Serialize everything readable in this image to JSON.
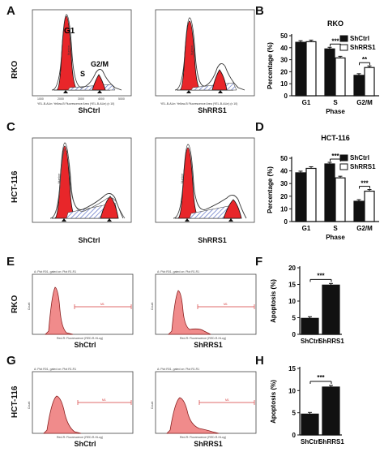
{
  "panels": {
    "A": {
      "letter": "A",
      "row_label": "RKO",
      "peak_labels": {
        "g1": "G1",
        "s": "S",
        "g2m": "G2/M"
      },
      "left_caption": "ShCtrl",
      "right_caption": "ShRRS1",
      "xaxis_text": "YEL-B-ALin: Yellow-B Fluorescence Area (YEL-B-ALin) (x 10)",
      "yaxis_text": "Number",
      "ticks": [
        "1000",
        "2000",
        "3000",
        "4000",
        "5000"
      ]
    },
    "C": {
      "letter": "C",
      "row_label": "HCT-116",
      "left_caption": "ShCtrl",
      "right_caption": "ShRRS1",
      "yaxis_text": "Number"
    },
    "E": {
      "letter": "E",
      "row_label": "RKO",
      "left_caption": "ShCtrl",
      "right_caption": "ShRRS1",
      "hist_title": "A: Plot R01, gated on: Plot R1.R1",
      "xaxis_text": "Red-R: Fluorescence (RED-R-HLog)",
      "yaxis_text": "Count",
      "gate_label": "M1"
    },
    "G": {
      "letter": "G",
      "row_label": "HCT-116",
      "left_caption": "ShCtrl",
      "right_caption": "ShRRS1",
      "hist_title": "A: Plot R01, gated on: Plot R1.R1",
      "xaxis_text": "Red-R: Fluorescence (RED-R-HLog)",
      "yaxis_text": "Count",
      "gate_label": "M1"
    }
  },
  "colors": {
    "fill_red": "#e8262a",
    "fill_pink": "#f08b8b",
    "hatch_blue": "#5b6fc4",
    "gate_red": "#d53a3a"
  },
  "chart_data": [
    {
      "panel": "B",
      "type": "bar",
      "title": "RKO",
      "ylabel": "Percentage (%)",
      "xlabel": "Phase",
      "categories": [
        "G1",
        "S",
        "G2/M"
      ],
      "ylim": [
        0,
        50
      ],
      "yticks": [
        "0",
        "10",
        "20",
        "30",
        "40",
        "50"
      ],
      "series": [
        {
          "name": "ShCtrl",
          "values": [
            44.5,
            39,
            17
          ]
        },
        {
          "name": "ShRRS1",
          "values": [
            45,
            31.5,
            23.5
          ]
        }
      ],
      "significance": [
        "",
        "***",
        "**"
      ],
      "legend": "top-right"
    },
    {
      "panel": "D",
      "type": "bar",
      "title": "HCT-116",
      "ylabel": "Percentage (%)",
      "xlabel": "Phase",
      "categories": [
        "G1",
        "S",
        "G2/M"
      ],
      "ylim": [
        0,
        50
      ],
      "yticks": [
        "0",
        "10",
        "20",
        "30",
        "40",
        "50"
      ],
      "series": [
        {
          "name": "ShCtrl",
          "values": [
            38.5,
            45.5,
            16
          ]
        },
        {
          "name": "ShRRS1",
          "values": [
            42,
            34.5,
            24
          ]
        }
      ],
      "significance": [
        "",
        "***",
        "***"
      ],
      "legend": "top-right"
    },
    {
      "panel": "F",
      "type": "bar",
      "ylabel": "Apoptosis (%)",
      "categories": [
        "ShCtrl",
        "ShRRS1"
      ],
      "ylim": [
        0,
        20
      ],
      "yticks": [
        "0",
        "5",
        "10",
        "15",
        "20"
      ],
      "series": [
        {
          "name": "",
          "values": [
            4.8,
            14.8
          ]
        }
      ],
      "significance": [
        "***"
      ]
    },
    {
      "panel": "H",
      "type": "bar",
      "ylabel": "Apoptosis (%)",
      "categories": [
        "ShCtrl",
        "ShRRS1"
      ],
      "ylim": [
        0,
        15
      ],
      "yticks": [
        "0",
        "5",
        "10",
        "15"
      ],
      "series": [
        {
          "name": "",
          "values": [
            4.7,
            10.8
          ]
        }
      ],
      "significance": [
        "***"
      ]
    }
  ],
  "chart_letters": {
    "B": "B",
    "D": "D",
    "F": "F",
    "H": "H"
  }
}
